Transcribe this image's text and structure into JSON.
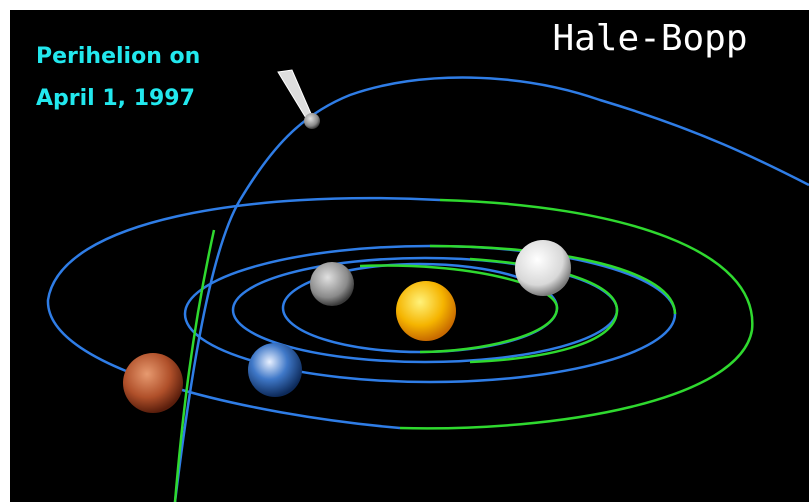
{
  "title": "Hale-Bopp",
  "caption": {
    "line1": "Perihelion on",
    "line2": "April 1, 1997"
  }
}
